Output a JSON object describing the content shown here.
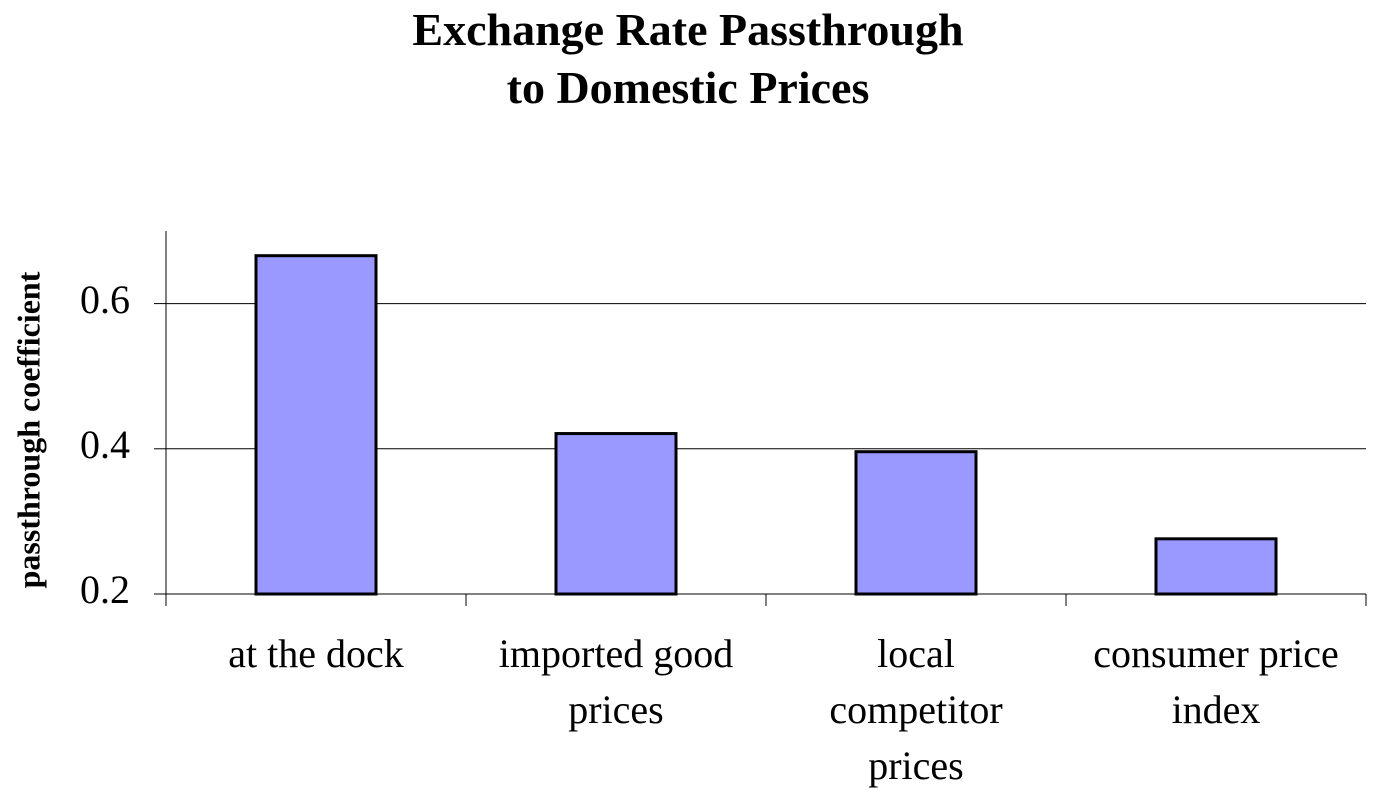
{
  "chart_data": {
    "type": "bar",
    "title": "Exchange Rate Passthrough\nto Domestic Prices",
    "y_label": "passthrough coefficient",
    "categories": [
      "at the dock",
      "imported good\nprices",
      "local\ncompetitor\nprices",
      "consumer price\nindex"
    ],
    "values": [
      0.666,
      0.421,
      0.396,
      0.276
    ],
    "color": "#9999ff",
    "ylim": [
      0.2,
      0.7
    ],
    "yticks": [
      0.2,
      0.4,
      0.6
    ],
    "grid": true
  }
}
